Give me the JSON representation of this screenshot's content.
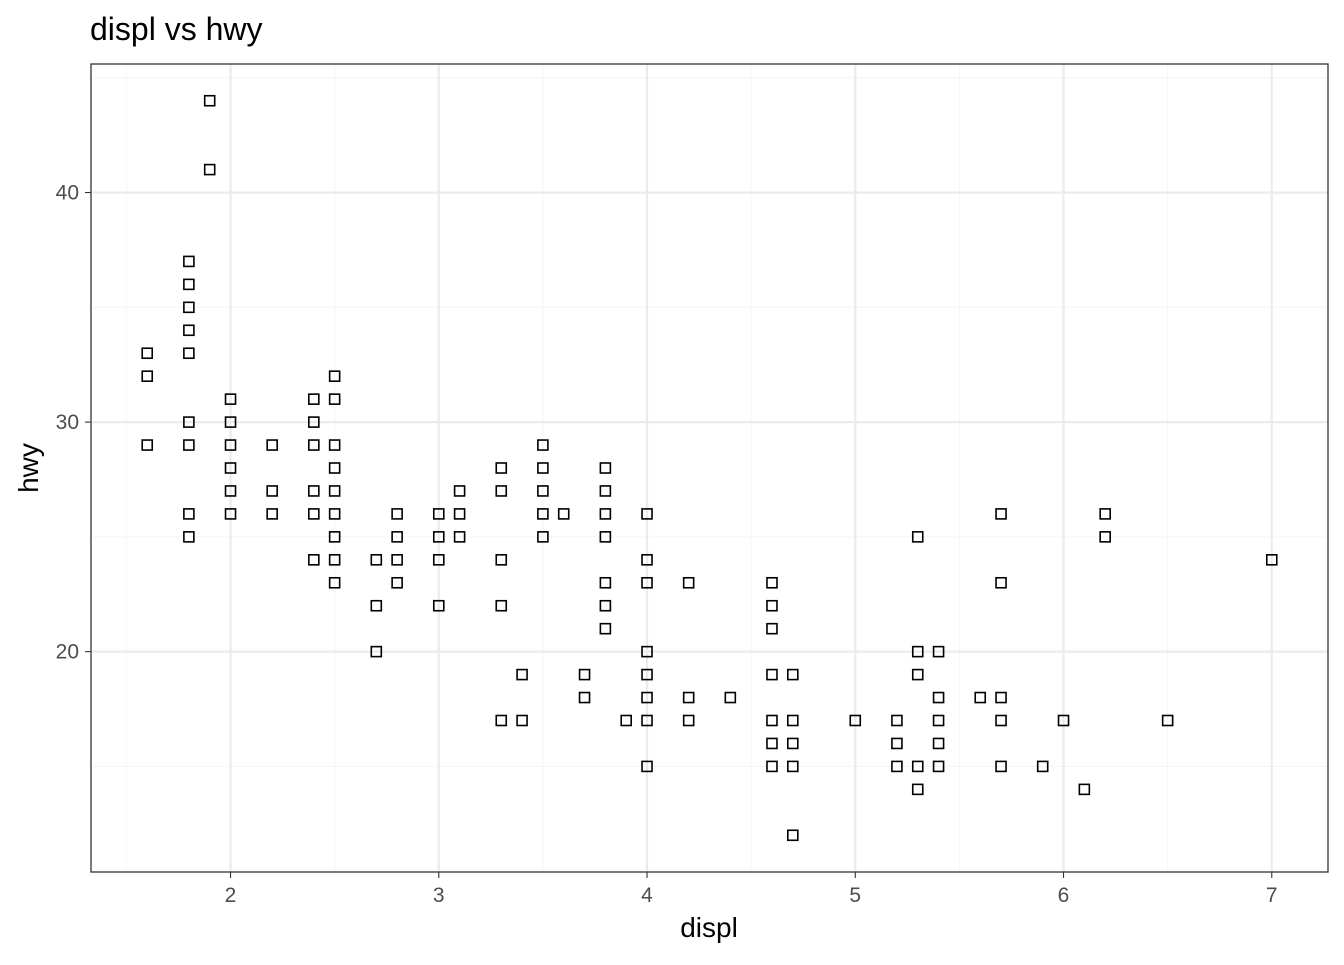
{
  "chart_data": {
    "type": "scatter",
    "title": "displ vs hwy",
    "xlabel": "displ",
    "ylabel": "hwy",
    "xlim": [
      1.33,
      7.27
    ],
    "ylim": [
      10.4,
      45.6
    ],
    "xticks": [
      "2",
      "3",
      "4",
      "5",
      "6",
      "7"
    ],
    "yticks": [
      "20",
      "30",
      "40"
    ],
    "x_tick_values": [
      2,
      3,
      4,
      5,
      6,
      7
    ],
    "y_tick_values": [
      20,
      30,
      40
    ],
    "x_minor_values": [
      1.5,
      2.5,
      3.5,
      4.5,
      5.5,
      6.5
    ],
    "y_minor_values": [
      15,
      25,
      35,
      45
    ],
    "grid": true,
    "marker": "open-square",
    "colors": {
      "background": "#ffffff",
      "panel_border": "#333333",
      "grid_major": "#ebebeb",
      "grid_minor": "#f5f5f5",
      "point": "#000000",
      "tick_text": "#4d4d4d"
    },
    "points": [
      [
        1.9,
        44
      ],
      [
        1.9,
        41
      ],
      [
        1.8,
        37
      ],
      [
        1.8,
        36
      ],
      [
        1.8,
        35
      ],
      [
        1.8,
        34
      ],
      [
        1.8,
        33
      ],
      [
        1.8,
        30
      ],
      [
        1.8,
        29
      ],
      [
        1.8,
        26
      ],
      [
        1.8,
        25
      ],
      [
        1.6,
        33
      ],
      [
        1.6,
        32
      ],
      [
        1.6,
        29
      ],
      [
        2.0,
        31
      ],
      [
        2.0,
        30
      ],
      [
        2.0,
        29
      ],
      [
        2.0,
        28
      ],
      [
        2.0,
        27
      ],
      [
        2.0,
        26
      ],
      [
        2.2,
        29
      ],
      [
        2.2,
        27
      ],
      [
        2.2,
        26
      ],
      [
        2.4,
        31
      ],
      [
        2.4,
        30
      ],
      [
        2.4,
        29
      ],
      [
        2.4,
        27
      ],
      [
        2.4,
        26
      ],
      [
        2.4,
        24
      ],
      [
        2.5,
        32
      ],
      [
        2.5,
        31
      ],
      [
        2.5,
        29
      ],
      [
        2.5,
        28
      ],
      [
        2.5,
        27
      ],
      [
        2.5,
        26
      ],
      [
        2.5,
        25
      ],
      [
        2.5,
        24
      ],
      [
        2.5,
        23
      ],
      [
        2.7,
        24
      ],
      [
        2.7,
        22
      ],
      [
        2.7,
        20
      ],
      [
        2.8,
        26
      ],
      [
        2.8,
        25
      ],
      [
        2.8,
        24
      ],
      [
        2.8,
        23
      ],
      [
        3.0,
        26
      ],
      [
        3.0,
        25
      ],
      [
        3.0,
        24
      ],
      [
        3.0,
        22
      ],
      [
        3.1,
        27
      ],
      [
        3.1,
        26
      ],
      [
        3.1,
        25
      ],
      [
        3.3,
        28
      ],
      [
        3.3,
        27
      ],
      [
        3.3,
        24
      ],
      [
        3.3,
        22
      ],
      [
        3.3,
        17
      ],
      [
        3.4,
        19
      ],
      [
        3.4,
        17
      ],
      [
        3.5,
        29
      ],
      [
        3.5,
        28
      ],
      [
        3.5,
        27
      ],
      [
        3.5,
        26
      ],
      [
        3.5,
        25
      ],
      [
        3.6,
        26
      ],
      [
        3.7,
        19
      ],
      [
        3.7,
        18
      ],
      [
        3.8,
        28
      ],
      [
        3.8,
        27
      ],
      [
        3.8,
        26
      ],
      [
        3.8,
        25
      ],
      [
        3.8,
        23
      ],
      [
        3.8,
        22
      ],
      [
        3.8,
        21
      ],
      [
        3.9,
        17
      ],
      [
        4.0,
        26
      ],
      [
        4.0,
        24
      ],
      [
        4.0,
        23
      ],
      [
        4.0,
        20
      ],
      [
        4.0,
        19
      ],
      [
        4.0,
        18
      ],
      [
        4.0,
        17
      ],
      [
        4.0,
        15
      ],
      [
        4.2,
        23
      ],
      [
        4.2,
        18
      ],
      [
        4.2,
        17
      ],
      [
        4.4,
        18
      ],
      [
        4.6,
        23
      ],
      [
        4.6,
        22
      ],
      [
        4.6,
        21
      ],
      [
        4.6,
        19
      ],
      [
        4.6,
        17
      ],
      [
        4.6,
        16
      ],
      [
        4.6,
        15
      ],
      [
        4.7,
        19
      ],
      [
        4.7,
        17
      ],
      [
        4.7,
        16
      ],
      [
        4.7,
        15
      ],
      [
        4.7,
        12
      ],
      [
        5.0,
        17
      ],
      [
        5.2,
        17
      ],
      [
        5.2,
        16
      ],
      [
        5.2,
        15
      ],
      [
        5.3,
        25
      ],
      [
        5.3,
        20
      ],
      [
        5.3,
        19
      ],
      [
        5.3,
        15
      ],
      [
        5.3,
        14
      ],
      [
        5.4,
        20
      ],
      [
        5.4,
        18
      ],
      [
        5.4,
        17
      ],
      [
        5.4,
        16
      ],
      [
        5.4,
        15
      ],
      [
        5.6,
        18
      ],
      [
        5.7,
        26
      ],
      [
        5.7,
        23
      ],
      [
        5.7,
        18
      ],
      [
        5.7,
        17
      ],
      [
        5.7,
        15
      ],
      [
        5.9,
        15
      ],
      [
        6.0,
        17
      ],
      [
        6.1,
        14
      ],
      [
        6.2,
        26
      ],
      [
        6.2,
        25
      ],
      [
        6.5,
        17
      ],
      [
        7.0,
        24
      ]
    ]
  }
}
